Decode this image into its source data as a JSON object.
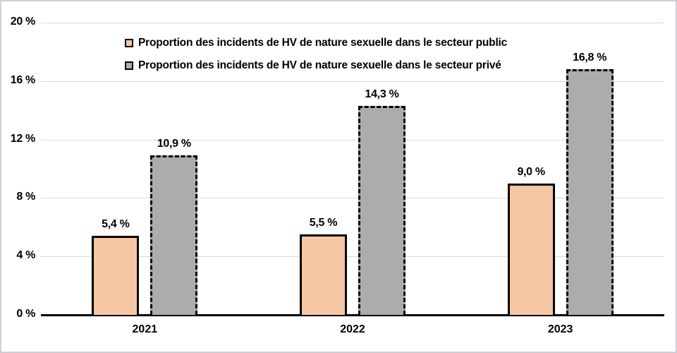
{
  "chart_data": {
    "type": "bar",
    "categories": [
      "2021",
      "2022",
      "2023"
    ],
    "series": [
      {
        "name": "Proportion des incidents de HV de nature sexuelle dans le secteur public",
        "values": [
          5.4,
          5.5,
          9.0
        ],
        "value_labels": [
          "5,4 %",
          "5,5 %",
          "9,0 %"
        ],
        "fill": "#F7C6A4",
        "border_style": "solid"
      },
      {
        "name": "Proportion des incidents de HV de nature sexuelle dans le secteur privé",
        "values": [
          10.9,
          14.3,
          16.8
        ],
        "value_labels": [
          "10,9 %",
          "14,3 %",
          "16,8 %"
        ],
        "fill": "#ACACAC",
        "border_style": "dashed"
      }
    ],
    "ylim": [
      0,
      20
    ],
    "yticks": [
      0,
      4,
      8,
      12,
      16,
      20
    ],
    "ytick_labels": [
      "0 %",
      "4 %",
      "8 %",
      "12 %",
      "16 %",
      "20 %"
    ],
    "grid": true,
    "legend_position": "top-center",
    "colors": {
      "bar_border": "#000000",
      "gridline": "#D9D9D9",
      "axis": "#000000",
      "text": "#000000",
      "frame_border": "#CDD0D6",
      "background": "#FFFFFF"
    }
  }
}
